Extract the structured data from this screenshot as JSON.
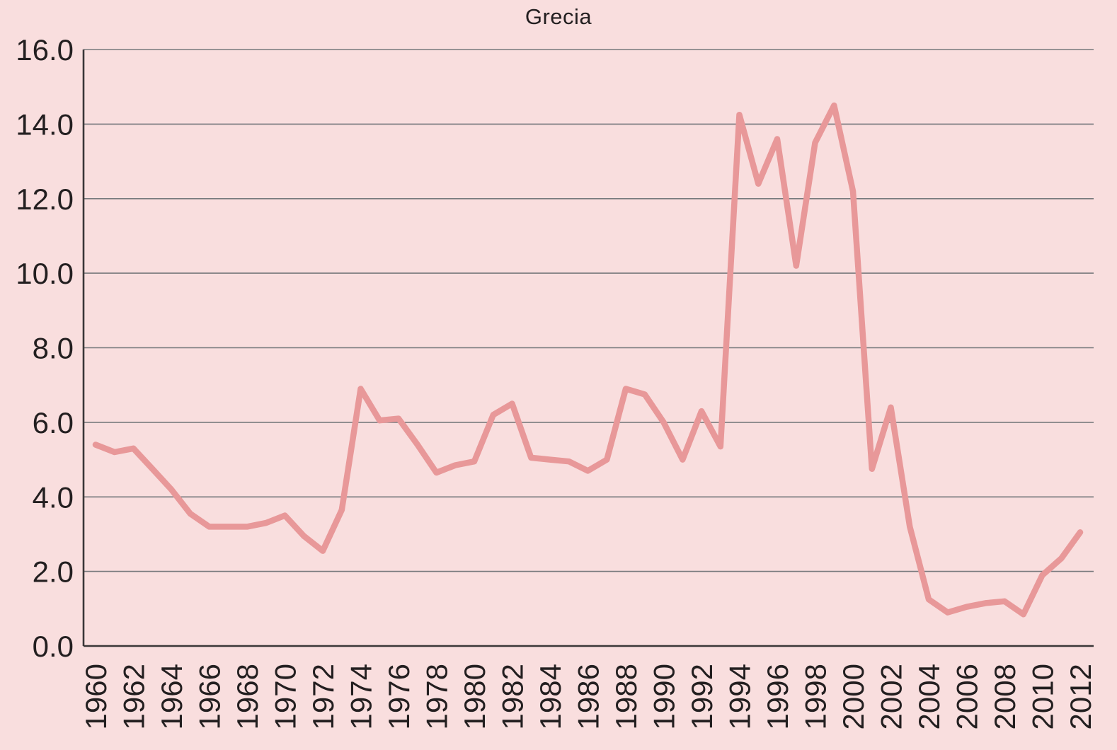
{
  "chart_data": {
    "type": "line",
    "title": "Grecia",
    "legend": "none",
    "grid": "horizontal",
    "ylim": [
      0,
      16
    ],
    "ytick_step": 2,
    "ytick_labels": [
      "0.0",
      "2.0",
      "4.0",
      "6.0",
      "8.0",
      "10.0",
      "12.0",
      "14.0",
      "16.0"
    ],
    "xtick_labels": [
      "1960",
      "1962",
      "1964",
      "1966",
      "1968",
      "1970",
      "1972",
      "1974",
      "1976",
      "1978",
      "1980",
      "1982",
      "1984",
      "1986",
      "1988",
      "1990",
      "1992",
      "1994",
      "1996",
      "1998",
      "2000",
      "2002",
      "2004",
      "2006",
      "2008",
      "2010",
      "2012"
    ],
    "x": [
      1960,
      1961,
      1962,
      1963,
      1964,
      1965,
      1966,
      1967,
      1968,
      1969,
      1970,
      1971,
      1972,
      1973,
      1974,
      1975,
      1976,
      1977,
      1978,
      1979,
      1980,
      1981,
      1982,
      1983,
      1984,
      1985,
      1986,
      1987,
      1988,
      1989,
      1990,
      1991,
      1992,
      1993,
      1994,
      1995,
      1996,
      1997,
      1998,
      1999,
      2000,
      2001,
      2002,
      2003,
      2004,
      2005,
      2006,
      2007,
      2008,
      2009,
      2010,
      2011,
      2012
    ],
    "series": [
      {
        "name": "Grecia",
        "values": [
          5.4,
          5.2,
          5.3,
          4.75,
          4.2,
          3.55,
          3.2,
          3.2,
          3.2,
          3.3,
          3.5,
          2.95,
          2.55,
          3.65,
          6.9,
          6.05,
          6.1,
          5.4,
          4.65,
          4.85,
          4.95,
          6.2,
          6.5,
          5.05,
          5.0,
          4.95,
          4.7,
          5.0,
          6.9,
          6.75,
          6.0,
          5.0,
          6.3,
          5.35,
          14.25,
          12.4,
          13.6,
          10.2,
          13.5,
          14.5,
          12.2,
          4.75,
          6.4,
          3.2,
          1.25,
          0.9,
          1.05,
          1.15,
          1.2,
          0.85,
          1.9,
          2.35,
          3.05
        ]
      }
    ],
    "colors": {
      "background": "#f9dede",
      "line": "#e89899",
      "grid": "#77797c",
      "axis": "#3b3738",
      "text": "#231f20"
    }
  }
}
